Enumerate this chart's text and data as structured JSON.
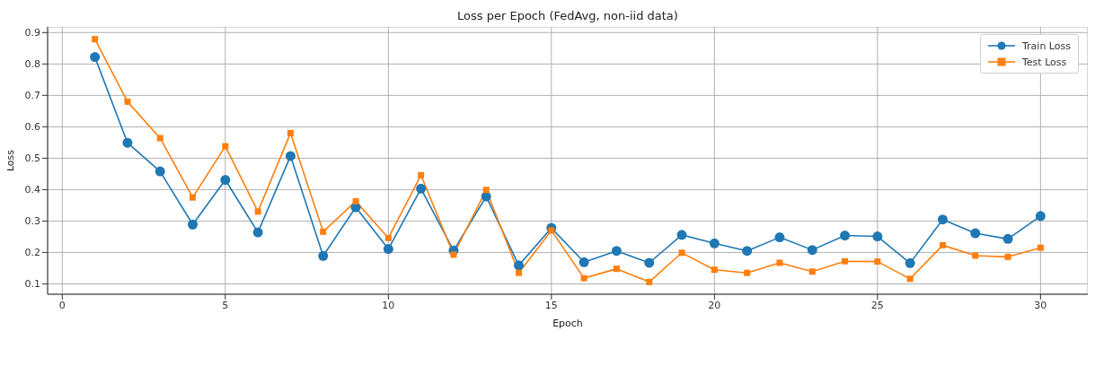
{
  "chart_data": {
    "type": "line",
    "title": "Loss per Epoch (FedAvg, non-iid data)",
    "xlabel": "Epoch",
    "ylabel": "Loss",
    "x": [
      1,
      2,
      3,
      4,
      5,
      6,
      7,
      8,
      9,
      10,
      11,
      12,
      13,
      14,
      15,
      16,
      17,
      18,
      19,
      20,
      21,
      22,
      23,
      24,
      25,
      26,
      27,
      28,
      29,
      30
    ],
    "series": [
      {
        "name": "Train Loss",
        "color": "#1f77b4",
        "marker": "circle",
        "values": [
          0.822,
          0.549,
          0.458,
          0.289,
          0.431,
          0.264,
          0.507,
          0.189,
          0.344,
          0.211,
          0.403,
          0.206,
          0.378,
          0.159,
          0.278,
          0.169,
          0.205,
          0.167,
          0.256,
          0.229,
          0.205,
          0.248,
          0.208,
          0.254,
          0.251,
          0.166,
          0.305,
          0.261,
          0.243,
          0.316
        ]
      },
      {
        "name": "Test Loss",
        "color": "#ff7f0e",
        "marker": "square",
        "values": [
          0.879,
          0.68,
          0.564,
          0.375,
          0.538,
          0.33,
          0.58,
          0.266,
          0.363,
          0.246,
          0.446,
          0.193,
          0.399,
          0.135,
          0.27,
          0.118,
          0.148,
          0.106,
          0.199,
          0.145,
          0.135,
          0.167,
          0.139,
          0.172,
          0.171,
          0.116,
          0.223,
          0.19,
          0.186,
          0.215
        ]
      }
    ],
    "xlim": [
      -0.45,
      31.45
    ],
    "xticks": [
      0,
      5,
      10,
      15,
      20,
      25,
      30
    ],
    "ylim": [
      0.067,
      0.918
    ],
    "yticks": [
      0.1,
      0.2,
      0.3,
      0.4,
      0.5,
      0.6,
      0.7,
      0.8,
      0.9
    ],
    "grid": true,
    "legend": "top right",
    "line_style": "solid"
  }
}
